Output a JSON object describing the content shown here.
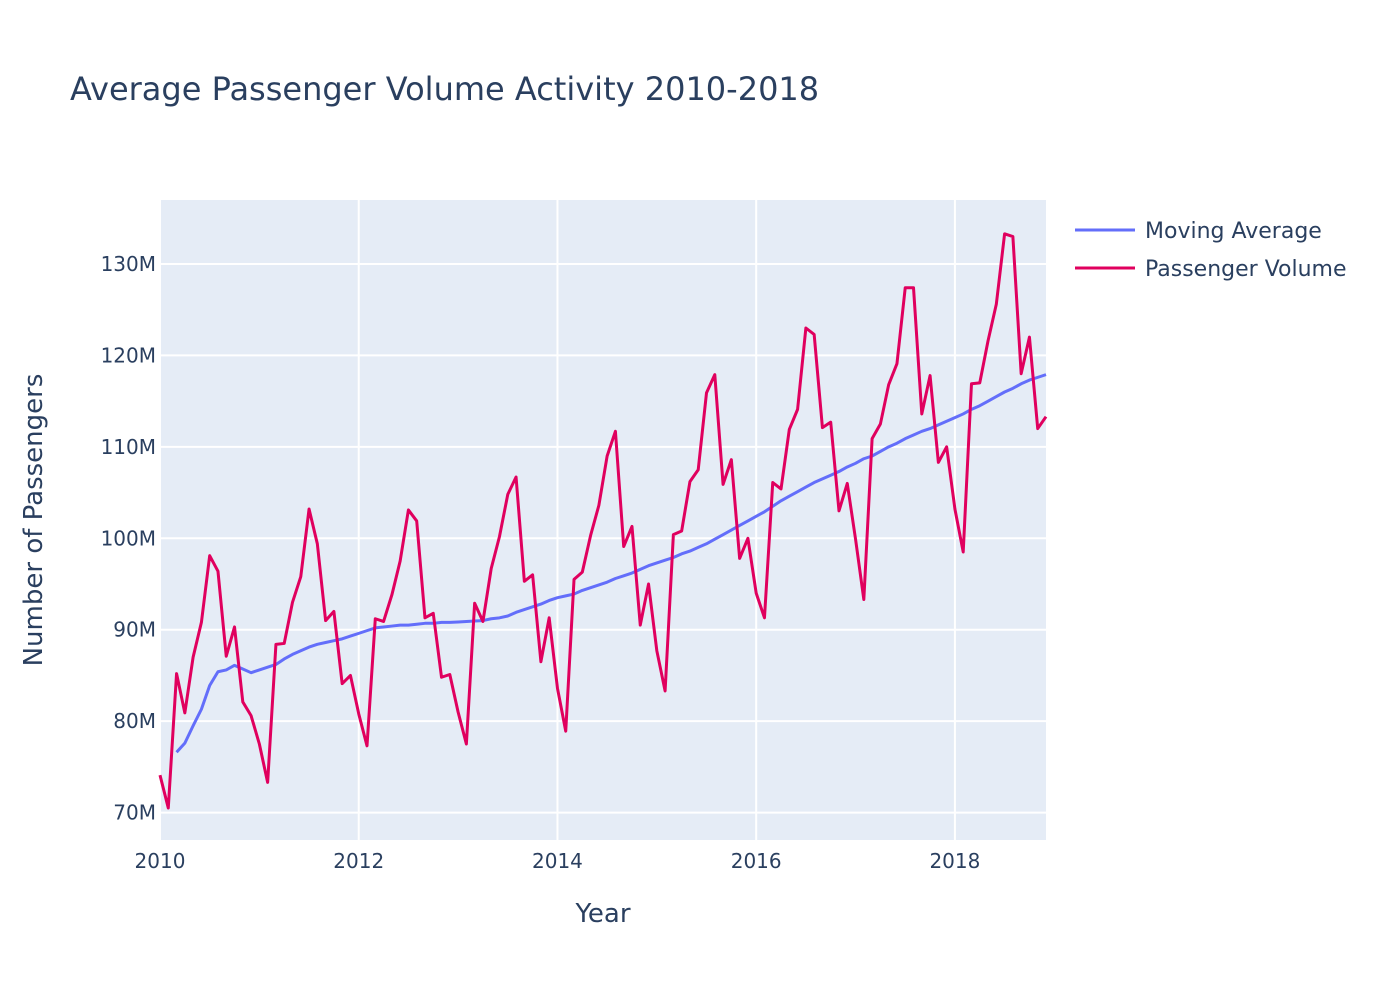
{
  "colors": {
    "plot_bg": "#e5ecf6",
    "grid": "#ffffff",
    "text": "#2a3f5f",
    "moving_average": "#636efa",
    "passenger_volume": "#e0005e"
  },
  "chart_data": {
    "type": "line",
    "title": "Average Passenger Volume Activity 2010-2018",
    "xlabel": "Year",
    "ylabel": "Number of Passengers",
    "xlim": [
      "2010-01",
      "2018-12"
    ],
    "ylim": [
      67000000,
      137000000
    ],
    "x_ticks": [
      "2010",
      "2012",
      "2014",
      "2016",
      "2018"
    ],
    "y_ticks": [
      "70M",
      "80M",
      "90M",
      "100M",
      "110M",
      "120M",
      "130M"
    ],
    "grid": true,
    "legend_position": "top-right",
    "series": [
      {
        "name": "Moving Average",
        "color": "#636efa",
        "x": [
          "2010-03",
          "2010-04",
          "2010-05",
          "2010-06",
          "2010-07",
          "2010-08",
          "2010-09",
          "2010-10",
          "2010-11",
          "2010-12",
          "2011-01",
          "2011-02",
          "2011-03",
          "2011-04",
          "2011-05",
          "2011-06",
          "2011-07",
          "2011-08",
          "2011-09",
          "2011-10",
          "2011-11",
          "2011-12",
          "2012-01",
          "2012-02",
          "2012-03",
          "2012-04",
          "2012-05",
          "2012-06",
          "2012-07",
          "2012-08",
          "2012-09",
          "2012-10",
          "2012-11",
          "2012-12",
          "2013-01",
          "2013-02",
          "2013-03",
          "2013-04",
          "2013-05",
          "2013-06",
          "2013-07",
          "2013-08",
          "2013-09",
          "2013-10",
          "2013-11",
          "2013-12",
          "2014-01",
          "2014-02",
          "2014-03",
          "2014-04",
          "2014-05",
          "2014-06",
          "2014-07",
          "2014-08",
          "2014-09",
          "2014-10",
          "2014-11",
          "2014-12",
          "2015-01",
          "2015-02",
          "2015-03",
          "2015-04",
          "2015-05",
          "2015-06",
          "2015-07",
          "2015-08",
          "2015-09",
          "2015-10",
          "2015-11",
          "2015-12",
          "2016-01",
          "2016-02",
          "2016-03",
          "2016-04",
          "2016-05",
          "2016-06",
          "2016-07",
          "2016-08",
          "2016-09",
          "2016-10",
          "2016-11",
          "2016-12",
          "2017-01",
          "2017-02",
          "2017-03",
          "2017-04",
          "2017-05",
          "2017-06",
          "2017-07",
          "2017-08",
          "2017-09",
          "2017-10",
          "2017-11",
          "2017-12",
          "2018-01",
          "2018-02",
          "2018-03",
          "2018-04",
          "2018-05",
          "2018-06",
          "2018-07",
          "2018-08",
          "2018-09",
          "2018-10",
          "2018-11",
          "2018-12"
        ],
        "y": [
          76.6,
          77.6,
          79.5,
          81.3,
          83.9,
          85.4,
          85.6,
          86.1,
          85.7,
          85.3,
          85.6,
          85.9,
          86.2,
          86.8,
          87.3,
          87.7,
          88.1,
          88.4,
          88.6,
          88.8,
          89.0,
          89.3,
          89.6,
          89.9,
          90.2,
          90.3,
          90.4,
          90.5,
          90.5,
          90.6,
          90.7,
          90.7,
          90.8,
          90.8,
          90.85,
          90.9,
          90.95,
          91.0,
          91.2,
          91.3,
          91.5,
          91.9,
          92.2,
          92.5,
          92.8,
          93.2,
          93.5,
          93.7,
          93.9,
          94.3,
          94.6,
          94.9,
          95.2,
          95.6,
          95.9,
          96.2,
          96.6,
          97.0,
          97.3,
          97.6,
          97.9,
          98.3,
          98.6,
          99.0,
          99.4,
          99.9,
          100.4,
          100.9,
          101.4,
          101.9,
          102.4,
          102.9,
          103.5,
          104.1,
          104.6,
          105.1,
          105.6,
          106.1,
          106.5,
          106.9,
          107.3,
          107.8,
          108.2,
          108.7,
          109.0,
          109.5,
          110.0,
          110.4,
          110.9,
          111.3,
          111.7,
          112.0,
          112.4,
          112.8,
          113.2,
          113.6,
          114.1,
          114.5,
          115.0,
          115.5,
          116.0,
          116.4,
          116.9,
          117.3,
          117.6,
          117.9
        ]
      },
      {
        "name": "Passenger Volume",
        "color": "#e0005e",
        "x": [
          "2010-01",
          "2010-02",
          "2010-03",
          "2010-04",
          "2010-05",
          "2010-06",
          "2010-07",
          "2010-08",
          "2010-09",
          "2010-10",
          "2010-11",
          "2010-12",
          "2011-01",
          "2011-02",
          "2011-03",
          "2011-04",
          "2011-05",
          "2011-06",
          "2011-07",
          "2011-08",
          "2011-09",
          "2011-10",
          "2011-11",
          "2011-12",
          "2012-01",
          "2012-02",
          "2012-03",
          "2012-04",
          "2012-05",
          "2012-06",
          "2012-07",
          "2012-08",
          "2012-09",
          "2012-10",
          "2012-11",
          "2012-12",
          "2013-01",
          "2013-02",
          "2013-03",
          "2013-04",
          "2013-05",
          "2013-06",
          "2013-07",
          "2013-08",
          "2013-09",
          "2013-10",
          "2013-11",
          "2013-12",
          "2014-01",
          "2014-02",
          "2014-03",
          "2014-04",
          "2014-05",
          "2014-06",
          "2014-07",
          "2014-08",
          "2014-09",
          "2014-10",
          "2014-11",
          "2014-12",
          "2015-01",
          "2015-02",
          "2015-03",
          "2015-04",
          "2015-05",
          "2015-06",
          "2015-07",
          "2015-08",
          "2015-09",
          "2015-10",
          "2015-11",
          "2015-12",
          "2016-01",
          "2016-02",
          "2016-03",
          "2016-04",
          "2016-05",
          "2016-06",
          "2016-07",
          "2016-08",
          "2016-09",
          "2016-10",
          "2016-11",
          "2016-12",
          "2017-01",
          "2017-02",
          "2017-03",
          "2017-04",
          "2017-05",
          "2017-06",
          "2017-07",
          "2017-08",
          "2017-09",
          "2017-10",
          "2017-11",
          "2017-12",
          "2018-01",
          "2018-02",
          "2018-03",
          "2018-04",
          "2018-05",
          "2018-06",
          "2018-07",
          "2018-08",
          "2018-09",
          "2018-10",
          "2018-11",
          "2018-12"
        ],
        "y": [
          74.1,
          70.5,
          85.2,
          80.9,
          87.0,
          90.8,
          98.1,
          96.4,
          87.1,
          90.3,
          82.1,
          80.6,
          77.5,
          73.3,
          88.4,
          88.5,
          93.0,
          95.8,
          103.2,
          99.4,
          91.0,
          92.0,
          84.1,
          85.0,
          80.8,
          77.3,
          91.2,
          90.9,
          93.8,
          97.5,
          103.1,
          101.9,
          91.3,
          91.8,
          84.8,
          85.1,
          81.0,
          77.5,
          92.9,
          90.9,
          96.7,
          100.2,
          104.8,
          106.7,
          95.3,
          96.0,
          86.5,
          91.3,
          83.6,
          78.9,
          95.5,
          96.3,
          100.3,
          103.6,
          109.0,
          111.7,
          99.1,
          101.3,
          90.5,
          95.0,
          87.7,
          83.3,
          100.4,
          100.8,
          106.2,
          107.5,
          115.9,
          117.9,
          105.9,
          108.6,
          97.8,
          100.0,
          94.0,
          91.3,
          106.1,
          105.4,
          111.9,
          114.1,
          123.0,
          122.3,
          112.1,
          112.7,
          103.0,
          106.0,
          99.9,
          93.3,
          110.9,
          112.5,
          116.8,
          119.1,
          127.4,
          127.4,
          113.6,
          117.8,
          108.3,
          110.0,
          103.2,
          98.5,
          116.9,
          117.0,
          121.6,
          125.6,
          133.3,
          133.0,
          118.0,
          122.0,
          112.0,
          113.3
        ]
      }
    ]
  }
}
